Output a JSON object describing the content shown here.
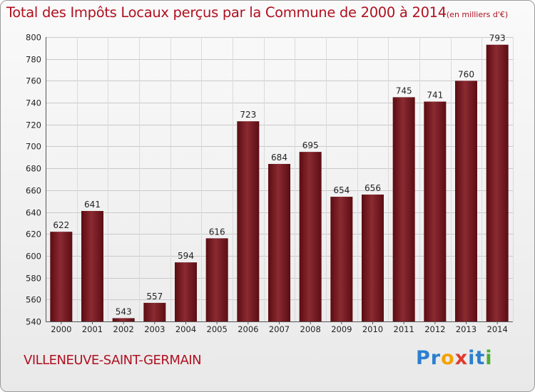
{
  "title": "Total des Impôts Locaux perçus par la Commune de 2000 à 2014",
  "title_unit": "(en milliers d'€)",
  "commune": "VILLENEUVE-SAINT-GERMAIN",
  "logo": {
    "letters": [
      "P",
      "r",
      "o",
      "x",
      "i",
      "t",
      "i"
    ],
    "colors": [
      "#2a7fd0",
      "#2a7fd0",
      "#f5a100",
      "#e03a2f",
      "#2a7fd0",
      "#2a7fd0",
      "#4caf2f"
    ]
  },
  "chart_data": {
    "type": "bar",
    "categories": [
      "2000",
      "2001",
      "2002",
      "2003",
      "2004",
      "2005",
      "2006",
      "2007",
      "2008",
      "2009",
      "2010",
      "2011",
      "2012",
      "2013",
      "2014"
    ],
    "values": [
      622,
      641,
      543,
      557,
      594,
      616,
      723,
      684,
      695,
      654,
      656,
      745,
      741,
      760,
      793
    ],
    "ylim": [
      540,
      800
    ],
    "yticks": [
      540,
      560,
      580,
      600,
      620,
      640,
      660,
      680,
      700,
      720,
      740,
      760,
      780,
      800
    ],
    "grid": true,
    "bar_color": "#7a1a22"
  }
}
